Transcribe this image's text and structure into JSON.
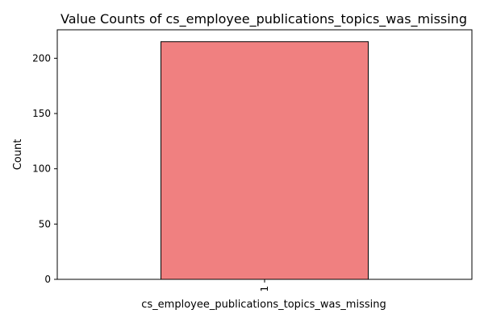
{
  "chart_data": {
    "type": "bar",
    "title": "Value Counts of cs_employee_publications_topics_was_missing",
    "xlabel": "cs_employee_publications_topics_was_missing",
    "ylabel": "Count",
    "categories": [
      "1"
    ],
    "values": [
      215
    ],
    "ylim": [
      0,
      225.75
    ],
    "yticks": [
      0,
      50,
      100,
      150,
      200
    ],
    "bar_color": "#f08080",
    "bar_edge_color": "#000000",
    "grid": false,
    "legend": "none"
  }
}
